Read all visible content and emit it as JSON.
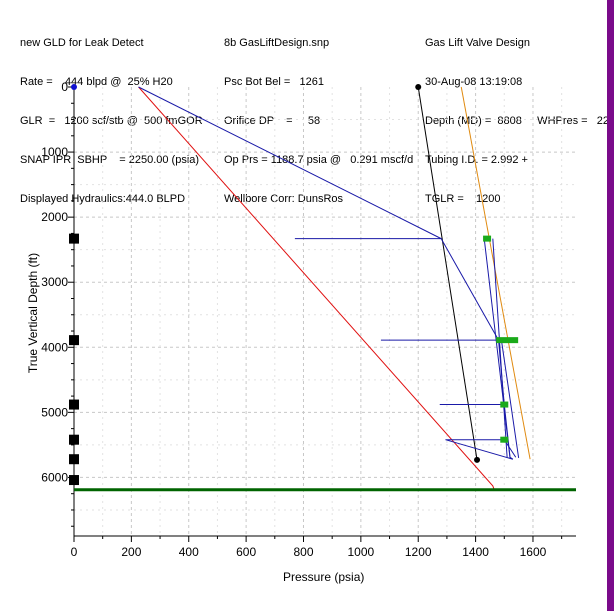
{
  "header": {
    "col1": [
      "new GLD for Leak Detect",
      "Rate =    444 blpd @  25% H20",
      "GLR  =   1200 scf/stb @  500 fmGOR",
      "SNAP IPR  SBHP    = 2250.00 (psia)",
      "Displayed Hydraulics:444.0 BLPD"
    ],
    "col2": [
      "8b GasLiftDesign.snp",
      "Psc Bot Bel =   1261",
      "Orifice DP    =     58",
      "Op Prs = 1188.7 psia @   0.291 mscf/d",
      "Wellbore Corr: DunsRos"
    ],
    "col3": [
      "Gas Lift Valve Design",
      "30-Aug-08 13:19:08",
      "Depth (MD) =  8808     WHPres =   22",
      "Tubing I.D. = 2.992 +",
      "TGLR =    1200"
    ]
  },
  "colors": {
    "blue": "#1a1aa8",
    "red": "#e01010",
    "black": "#000000",
    "orange": "#e08a10",
    "green": "#1aaa1a",
    "dark_green": "#006400",
    "side_bar": "#7a0a8a"
  },
  "chart_data": {
    "type": "line",
    "title": "Gas Lift Valve Design",
    "xlabel": "Pressure (psia)",
    "ylabel": "True Vertical Depth (ft)",
    "xlim": [
      0,
      1750
    ],
    "ylim": [
      6900,
      0
    ],
    "x_ticks": [
      0,
      200,
      400,
      600,
      800,
      1000,
      1200,
      1400,
      1600
    ],
    "y_ticks": [
      0,
      1000,
      2000,
      3000,
      4000,
      5000,
      6000
    ],
    "grid": true,
    "series": [
      {
        "name": "injection-gas-line",
        "color": "#e08a10",
        "x": [
          1350,
          1590
        ],
        "y": [
          0,
          5720
        ]
      },
      {
        "name": "gradient-line-black",
        "color": "#000000",
        "x": [
          1200,
          1405
        ],
        "y": [
          0,
          5730
        ]
      },
      {
        "name": "static-gradient-red",
        "color": "#e01010",
        "x": [
          225,
          1460,
          1465
        ],
        "y": [
          0,
          6130,
          6190
        ]
      },
      {
        "name": "valve-design-zigzag",
        "color": "#1a1aa8",
        "x": [
          225,
          1280,
          770,
          1280,
          1480,
          1070,
          1480,
          1500,
          1275,
          1500,
          1520,
          1530,
          1295,
          1500,
          1540
        ],
        "y": [
          0,
          2330,
          2330,
          2330,
          3890,
          3890,
          3890,
          4880,
          4880,
          4880,
          5690,
          5720,
          5420,
          5420,
          5690
        ]
      },
      {
        "name": "valve-line-1",
        "color": "#1a1aa8",
        "x": [
          1430,
          1520
        ],
        "y": [
          2330,
          5700
        ]
      },
      {
        "name": "valve-line-2",
        "color": "#1a1aa8",
        "x": [
          1460,
          1510
        ],
        "y": [
          2330,
          5700
        ]
      },
      {
        "name": "valve-line-3",
        "color": "#1a1aa8",
        "x": [
          1490,
          1550
        ],
        "y": [
          3890,
          5700
        ]
      }
    ],
    "valve_depths": [
      2330,
      3890,
      4880,
      5420,
      5720,
      6040
    ],
    "valve_markers": [
      {
        "x": 1440,
        "y": 2330
      },
      {
        "x": 1510,
        "y": 3890
      },
      {
        "x": 1500,
        "y": 4880
      },
      {
        "x": 1500,
        "y": 5420
      }
    ],
    "perforation_depth": 6190,
    "points": [
      {
        "x": 1200,
        "y": 0
      },
      {
        "x": 1405,
        "y": 5730
      }
    ],
    "origin_marker": {
      "x": 0,
      "y": 0
    }
  }
}
